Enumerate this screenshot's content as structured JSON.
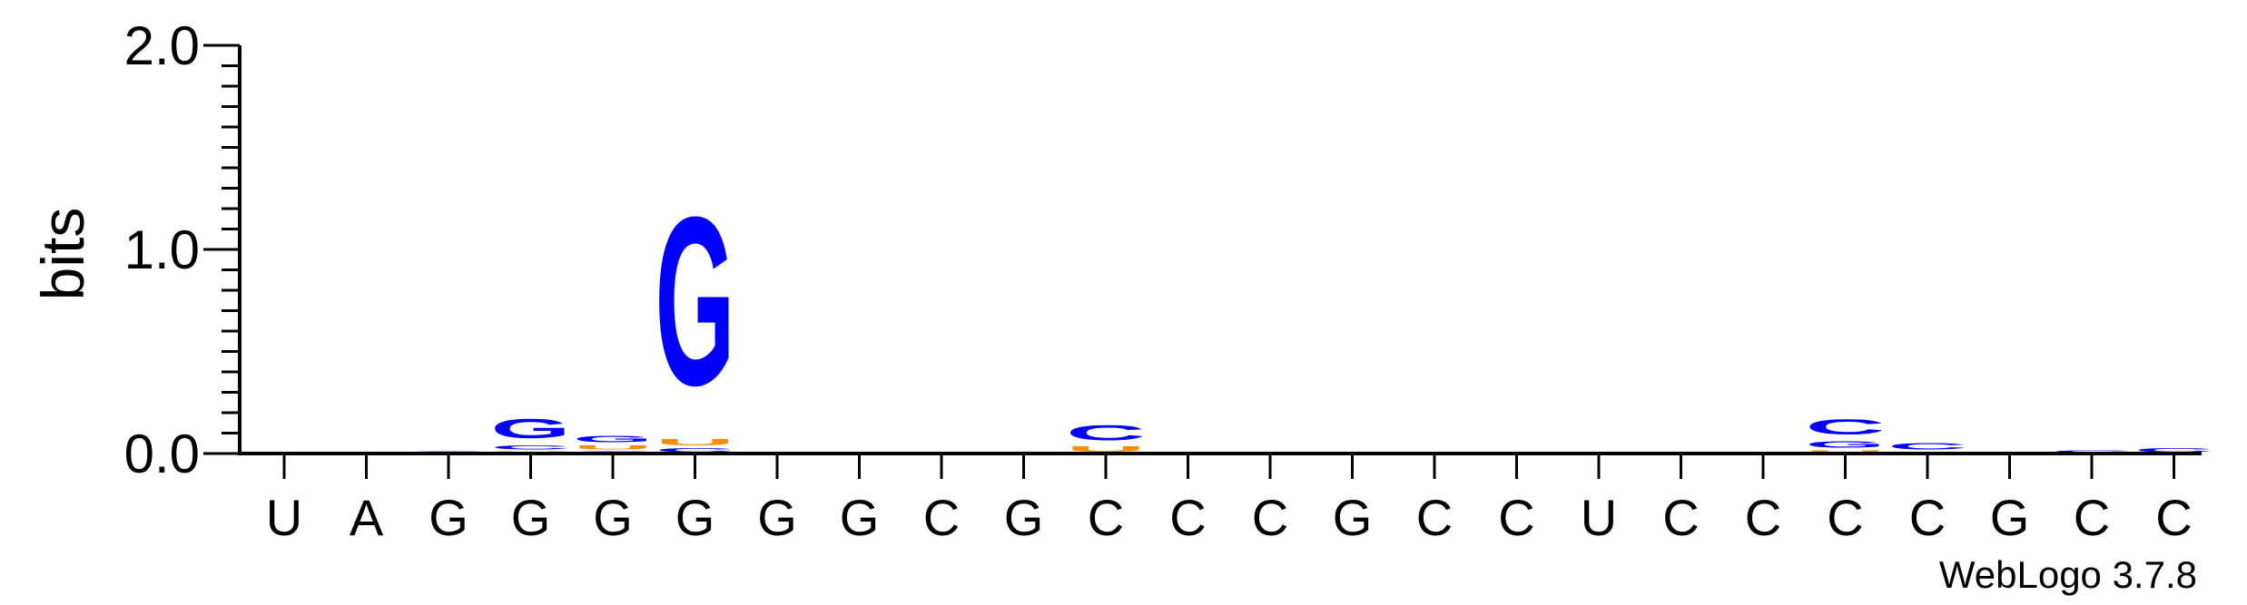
{
  "chart_data": {
    "type": "sequence-logo",
    "ylabel": "bits",
    "ylim": [
      0,
      2.0
    ],
    "yticks": [
      "0.0",
      "1.0",
      "2.0"
    ],
    "x_labels": [
      "U",
      "A",
      "G",
      "G",
      "G",
      "G",
      "G",
      "G",
      "C",
      "G",
      "C",
      "C",
      "C",
      "G",
      "C",
      "C",
      "U",
      "C",
      "C",
      "C",
      "C",
      "G",
      "C",
      "C"
    ],
    "credit": "WebLogo 3.7.8",
    "colors": {
      "G": "#0000ff",
      "C": "#0000ff",
      "U": "#ff8c00",
      "A": "#ff8c00"
    },
    "stacks": [
      {
        "position": 1,
        "letters": []
      },
      {
        "position": 2,
        "letters": []
      },
      {
        "position": 3,
        "letters": [
          {
            "letter": "G",
            "bits": 0.012
          }
        ]
      },
      {
        "position": 4,
        "letters": [
          {
            "letter": "U",
            "bits": 0.015
          },
          {
            "letter": "C",
            "bits": 0.03
          },
          {
            "letter": "G",
            "bits": 0.15
          }
        ]
      },
      {
        "position": 5,
        "letters": [
          {
            "letter": "C",
            "bits": 0.015
          },
          {
            "letter": "U",
            "bits": 0.03
          },
          {
            "letter": "G",
            "bits": 0.05
          }
        ]
      },
      {
        "position": 6,
        "letters": [
          {
            "letter": "C",
            "bits": 0.03
          },
          {
            "letter": "U",
            "bits": 0.05
          },
          {
            "letter": "G",
            "bits": 1.32
          }
        ]
      },
      {
        "position": 7,
        "letters": []
      },
      {
        "position": 8,
        "letters": []
      },
      {
        "position": 9,
        "letters": []
      },
      {
        "position": 10,
        "letters": []
      },
      {
        "position": 11,
        "letters": [
          {
            "letter": "U",
            "bits": 0.04
          },
          {
            "letter": "C",
            "bits": 0.12
          }
        ]
      },
      {
        "position": 12,
        "letters": []
      },
      {
        "position": 13,
        "letters": []
      },
      {
        "position": 14,
        "letters": []
      },
      {
        "position": 15,
        "letters": [
          {
            "letter": "C",
            "bits": 0.01
          }
        ]
      },
      {
        "position": 16,
        "letters": []
      },
      {
        "position": 17,
        "letters": [
          {
            "letter": "C",
            "bits": 0.01
          }
        ]
      },
      {
        "position": 18,
        "letters": []
      },
      {
        "position": 19,
        "letters": []
      },
      {
        "position": 20,
        "letters": [
          {
            "letter": "U",
            "bits": 0.02
          },
          {
            "letter": "G",
            "bits": 0.05
          },
          {
            "letter": "C",
            "bits": 0.12
          }
        ]
      },
      {
        "position": 21,
        "letters": [
          {
            "letter": "U",
            "bits": 0.01
          },
          {
            "letter": "C",
            "bits": 0.05
          }
        ]
      },
      {
        "position": 22,
        "letters": []
      },
      {
        "position": 23,
        "letters": [
          {
            "letter": "C",
            "bits": 0.02
          }
        ]
      },
      {
        "position": 24,
        "letters": [
          {
            "letter": "C",
            "bits": 0.03
          }
        ]
      }
    ]
  }
}
